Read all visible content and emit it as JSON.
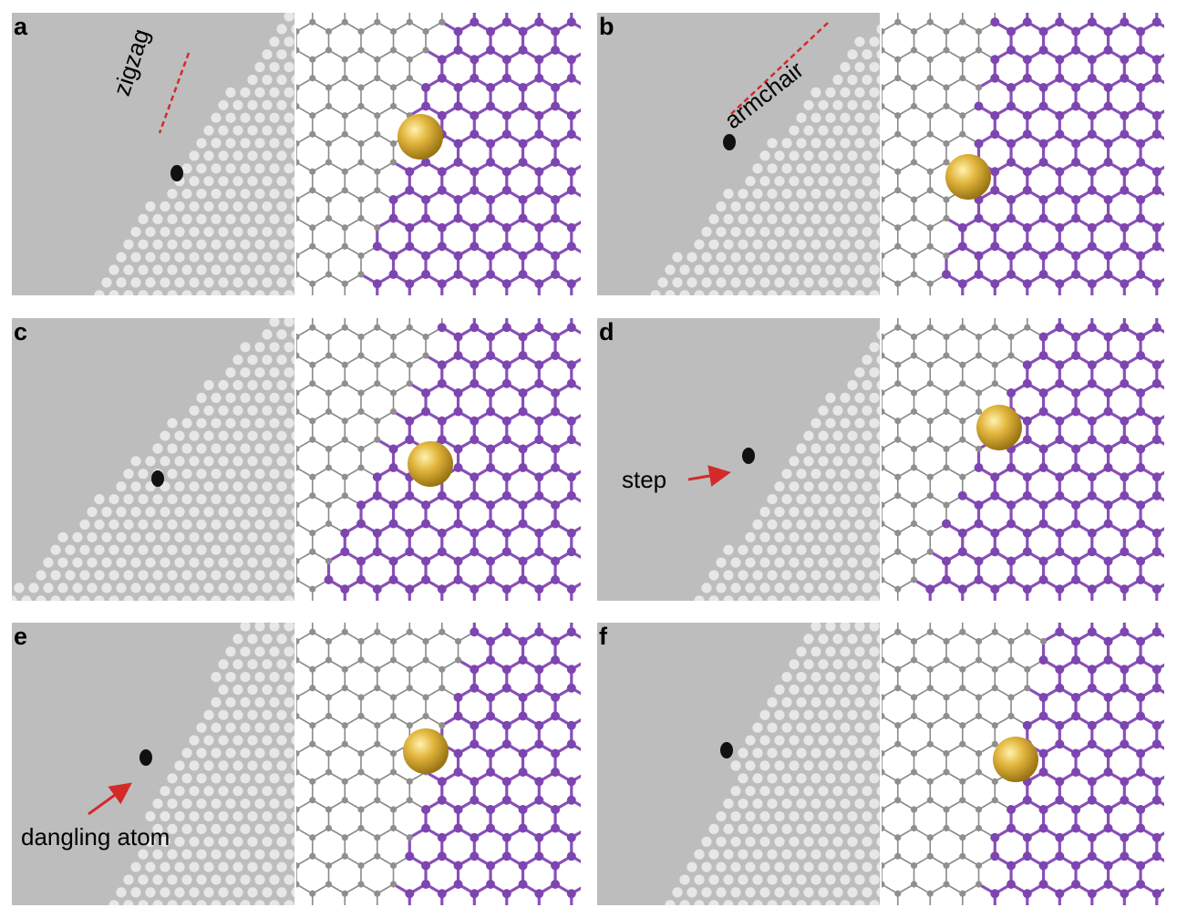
{
  "figure": {
    "panels": [
      {
        "id": "a",
        "label": "a",
        "annotation": "zigzag"
      },
      {
        "id": "b",
        "label": "b",
        "annotation": "armchair"
      },
      {
        "id": "c",
        "label": "c",
        "annotation": ""
      },
      {
        "id": "d",
        "label": "d",
        "annotation": "step"
      },
      {
        "id": "e",
        "label": "e",
        "annotation": "dangling atom"
      },
      {
        "id": "f",
        "label": "f",
        "annotation": ""
      }
    ],
    "colors": {
      "tem_background": "#bdbdbd",
      "tem_atom_column": "#efefef",
      "tem_dopant": "#111111",
      "lattice_bond_gray": "#8a8a8a",
      "lattice_atom_gray": "#8f8f8f",
      "lattice_bond_purple": "#8a4fb8",
      "lattice_atom_purple": "#7d45b0",
      "metal_atom_gold": "#e2b63d",
      "annotation_red": "#d42a2a"
    }
  }
}
